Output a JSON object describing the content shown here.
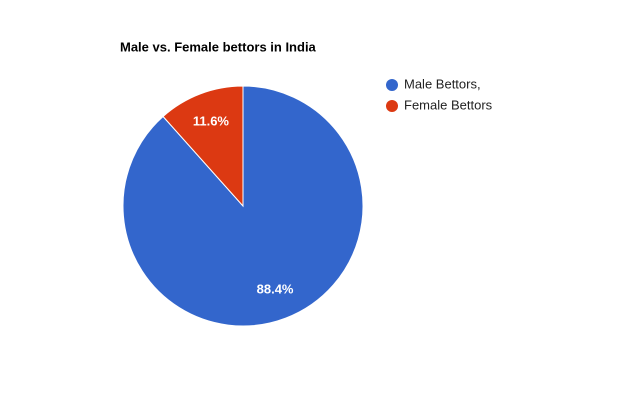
{
  "chart_data": {
    "type": "pie",
    "title": "Male vs. Female bettors in India",
    "categories": [
      "Male Bettors,",
      "Female Bettors"
    ],
    "values": [
      88.4,
      11.6
    ],
    "value_labels": [
      "88.4%",
      "11.6%"
    ],
    "colors": [
      "#3366cc",
      "#dc3912"
    ],
    "legend": "right"
  }
}
